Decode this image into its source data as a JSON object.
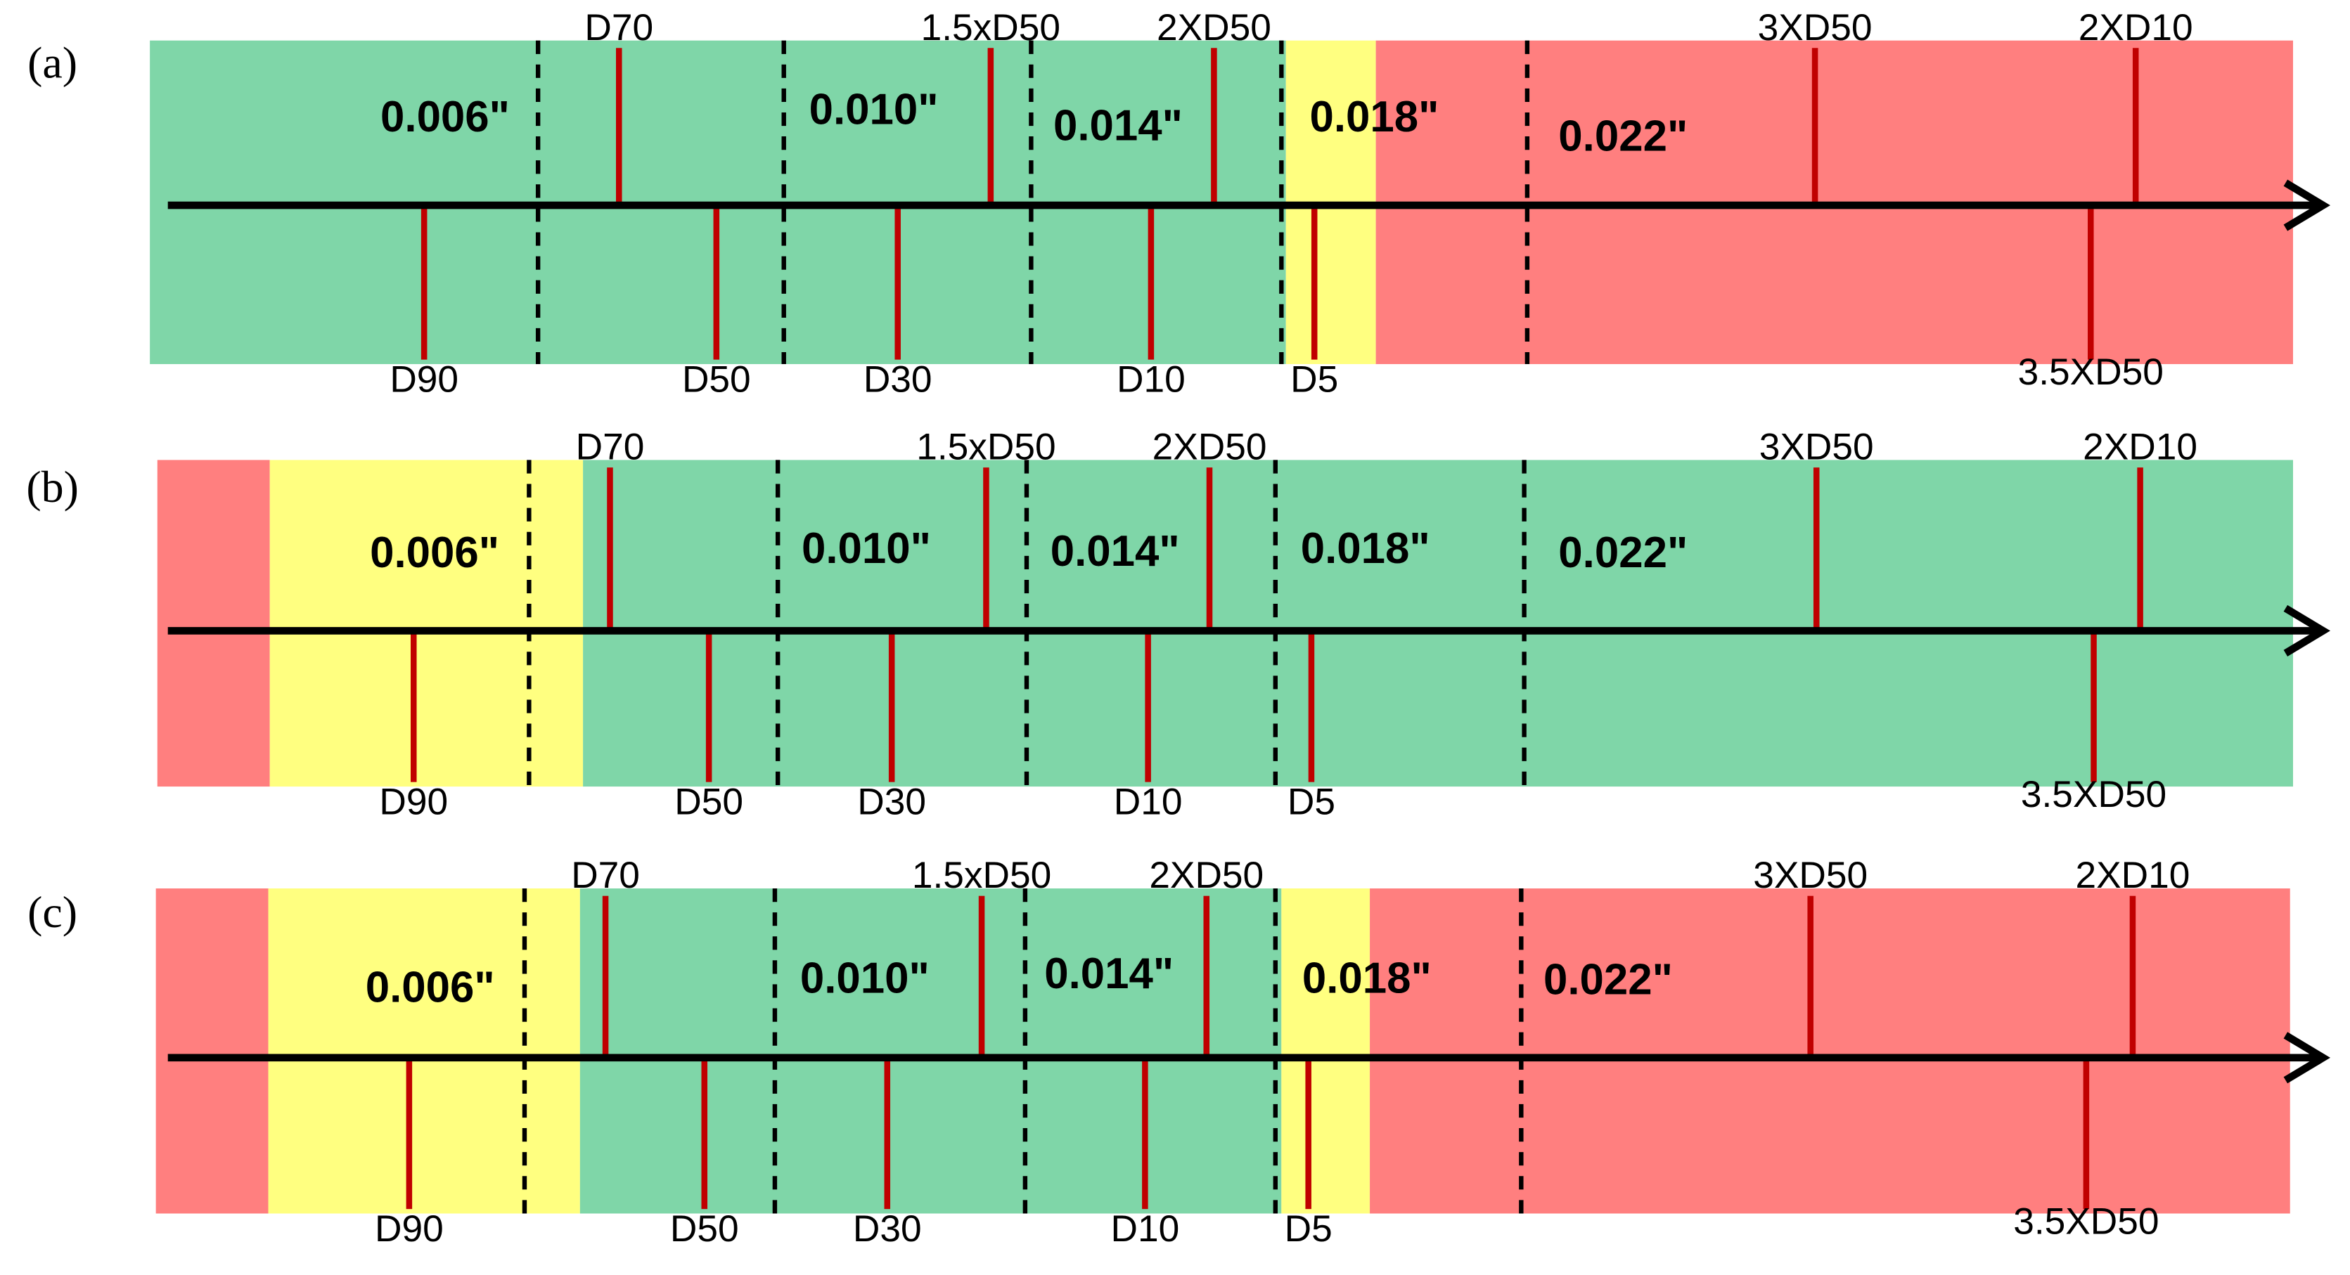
{
  "panels": [
    {
      "label": "(a)",
      "zones": [
        "0.006\"",
        "0.010\"",
        "0.014\"",
        "0.018\"",
        "0.022\""
      ],
      "above": [
        "D70",
        "1.5xD50",
        "2XD50",
        "3XD50",
        "2XD10"
      ],
      "below": [
        "D90",
        "D50",
        "D30",
        "D10",
        "D5",
        "3.5XD50"
      ]
    },
    {
      "label": "(b)",
      "zones": [
        "0.006\"",
        "0.010\"",
        "0.014\"",
        "0.018\"",
        "0.022\""
      ],
      "above": [
        "D70",
        "1.5xD50",
        "2XD50",
        "3XD50",
        "2XD10"
      ],
      "below": [
        "D90",
        "D50",
        "D30",
        "D10",
        "D5",
        "3.5XD50"
      ]
    },
    {
      "label": "(c)",
      "zones": [
        "0.006\"",
        "0.010\"",
        "0.014\"",
        "0.018\"",
        "0.022\""
      ],
      "above": [
        "D70",
        "1.5xD50",
        "2XD50",
        "3XD50",
        "2XD10"
      ],
      "below": [
        "D90",
        "D50",
        "D30",
        "D10",
        "D5",
        "3.5XD50"
      ]
    }
  ]
}
